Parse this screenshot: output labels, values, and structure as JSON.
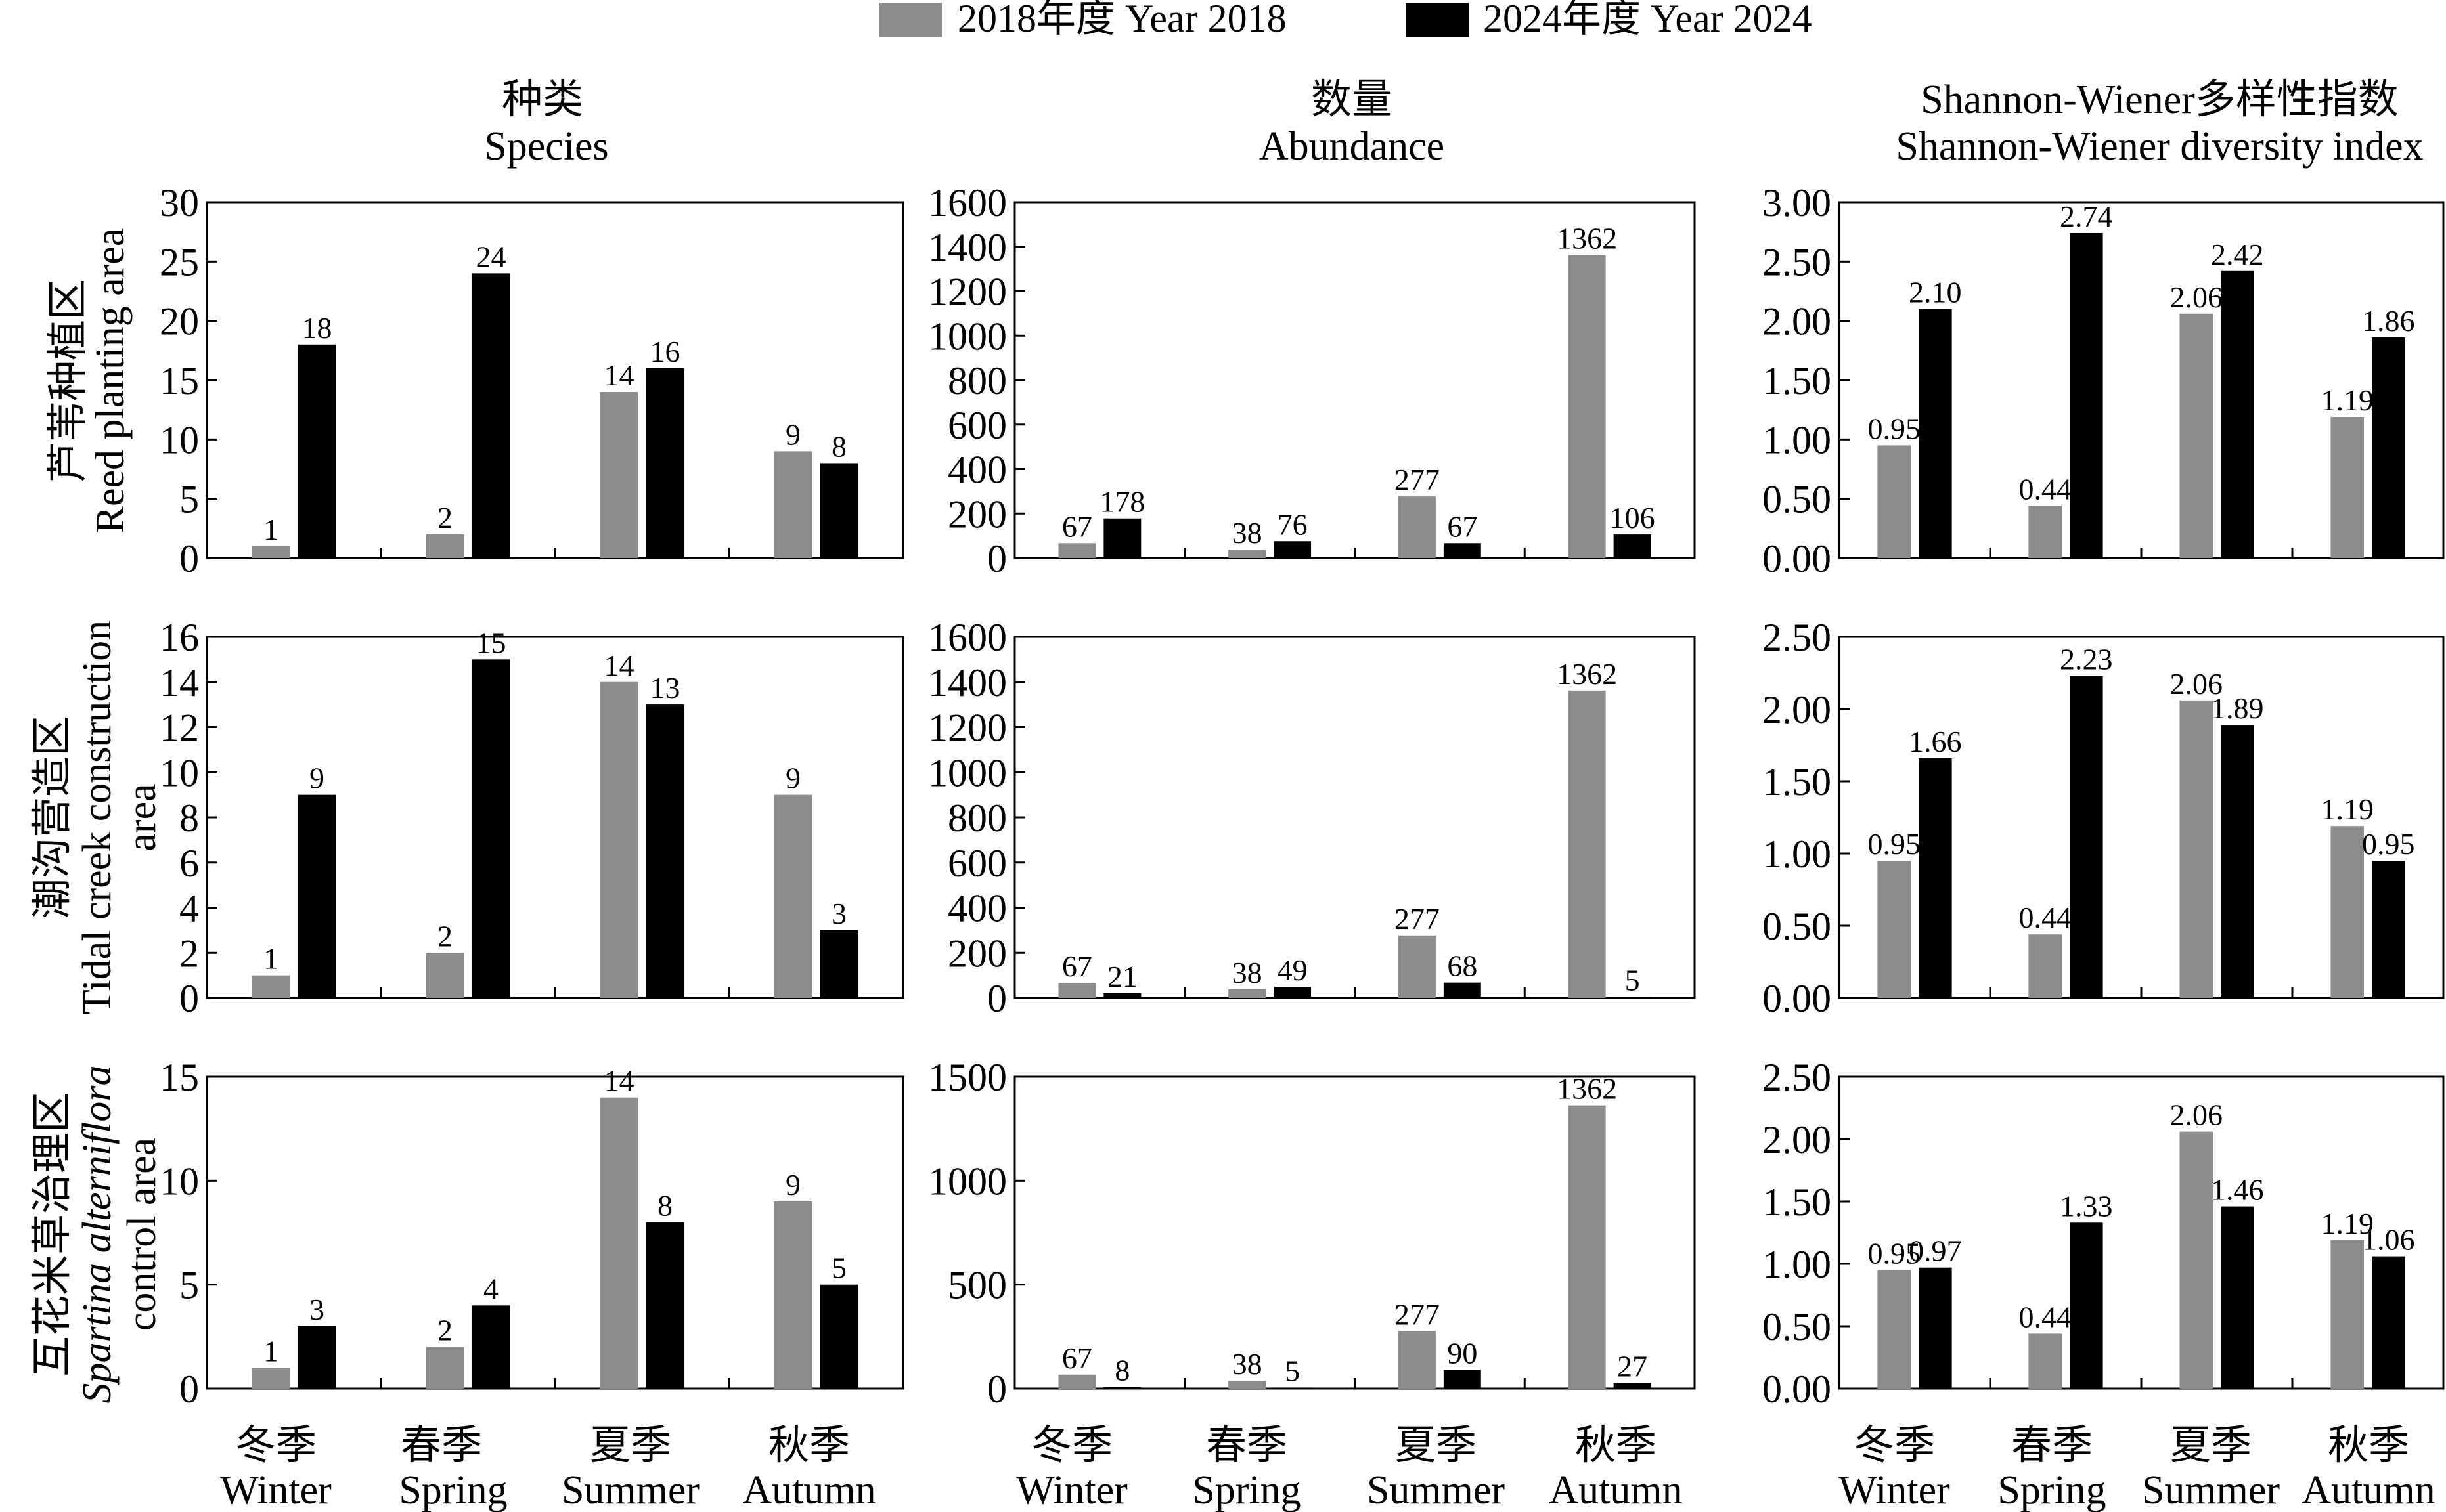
{
  "legend": {
    "items": [
      {
        "label": "2018年度 Year 2018",
        "color": "#8c8c8e"
      },
      {
        "label": "2024年度 Year 2024",
        "color": "#000000"
      }
    ]
  },
  "columns": [
    {
      "title_cn": "种类",
      "title_en": "Species"
    },
    {
      "title_cn": "数量",
      "title_en": "Abundance"
    },
    {
      "title_cn": "Shannon-Wiener多样性指数",
      "title_en": "Shannon-Wiener diversity index"
    }
  ],
  "rows": [
    {
      "lines": [
        "芦苇种植区",
        "Reed planting area"
      ]
    },
    {
      "lines": [
        "潮沟营造区",
        "Tidal creek construction",
        "area"
      ]
    },
    {
      "lines": [
        "互花米草治理区",
        "Spartina alterniflora",
        "control area"
      ]
    }
  ],
  "categories": [
    {
      "cn": "冬季",
      "en": "Winter"
    },
    {
      "cn": "春季",
      "en": "Spring"
    },
    {
      "cn": "夏季",
      "en": "Summer"
    },
    {
      "cn": "秋季",
      "en": "Autumn"
    }
  ],
  "chart_data": [
    {
      "type": "bar",
      "row": 0,
      "col": 0,
      "ylim": [
        0,
        30
      ],
      "yticks": [
        "0",
        "5",
        "10",
        "15",
        "20",
        "25",
        "30"
      ],
      "series": [
        {
          "name": "2018年度 Year 2018",
          "values": [
            1,
            2,
            14,
            9
          ],
          "labels": [
            "1",
            "2",
            "14",
            "9"
          ]
        },
        {
          "name": "2024年度 Year 2024",
          "values": [
            18,
            24,
            16,
            8
          ],
          "labels": [
            "18",
            "24",
            "16",
            "8"
          ]
        }
      ]
    },
    {
      "type": "bar",
      "row": 0,
      "col": 1,
      "ylim": [
        0,
        1600
      ],
      "yticks": [
        "0",
        "200",
        "400",
        "600",
        "800",
        "1000",
        "1200",
        "1400",
        "1600"
      ],
      "series": [
        {
          "name": "2018年度 Year 2018",
          "values": [
            67,
            38,
            277,
            1362
          ],
          "labels": [
            "67",
            "38",
            "277",
            "1362"
          ]
        },
        {
          "name": "2024年度 Year 2024",
          "values": [
            178,
            76,
            67,
            106
          ],
          "labels": [
            "178",
            "76",
            "67",
            "106"
          ]
        }
      ]
    },
    {
      "type": "bar",
      "row": 0,
      "col": 2,
      "ylim": [
        0,
        3
      ],
      "yticks": [
        "0.00",
        "0.50",
        "1.00",
        "1.50",
        "2.00",
        "2.50",
        "3.00"
      ],
      "series": [
        {
          "name": "2018年度 Year 2018",
          "values": [
            0.95,
            0.44,
            2.06,
            1.19
          ],
          "labels": [
            "0.95",
            "0.44",
            "2.06",
            "1.19"
          ]
        },
        {
          "name": "2024年度 Year 2024",
          "values": [
            2.1,
            2.74,
            2.42,
            1.86
          ],
          "labels": [
            "2.10",
            "2.74",
            "2.42",
            "1.86"
          ]
        }
      ]
    },
    {
      "type": "bar",
      "row": 1,
      "col": 0,
      "ylim": [
        0,
        16
      ],
      "yticks": [
        "0",
        "2",
        "4",
        "6",
        "8",
        "10",
        "12",
        "14",
        "16"
      ],
      "series": [
        {
          "name": "2018年度 Year 2018",
          "values": [
            1,
            2,
            14,
            9
          ],
          "labels": [
            "1",
            "2",
            "14",
            "9"
          ]
        },
        {
          "name": "2024年度 Year 2024",
          "values": [
            9,
            15,
            13,
            3
          ],
          "labels": [
            "9",
            "15",
            "13",
            "3"
          ]
        }
      ]
    },
    {
      "type": "bar",
      "row": 1,
      "col": 1,
      "ylim": [
        0,
        1600
      ],
      "yticks": [
        "0",
        "200",
        "400",
        "600",
        "800",
        "1000",
        "1200",
        "1400",
        "1600"
      ],
      "series": [
        {
          "name": "2018年度 Year 2018",
          "values": [
            67,
            38,
            277,
            1362
          ],
          "labels": [
            "67",
            "38",
            "277",
            "1362"
          ]
        },
        {
          "name": "2024年度 Year 2024",
          "values": [
            21,
            49,
            68,
            5
          ],
          "labels": [
            "21",
            "49",
            "68",
            "5"
          ]
        }
      ]
    },
    {
      "type": "bar",
      "row": 1,
      "col": 2,
      "ylim": [
        0,
        2.5
      ],
      "yticks": [
        "0.00",
        "0.50",
        "1.00",
        "1.50",
        "2.00",
        "2.50"
      ],
      "series": [
        {
          "name": "2018年度 Year 2018",
          "values": [
            0.95,
            0.44,
            2.06,
            1.19
          ],
          "labels": [
            "0.95",
            "0.44",
            "2.06",
            "1.19"
          ]
        },
        {
          "name": "2024年度 Year 2024",
          "values": [
            1.66,
            2.23,
            1.89,
            0.95
          ],
          "labels": [
            "1.66",
            "2.23",
            "1.89",
            "0.95"
          ]
        }
      ]
    },
    {
      "type": "bar",
      "row": 2,
      "col": 0,
      "ylim": [
        0,
        15
      ],
      "yticks": [
        "0",
        "5",
        "10",
        "15"
      ],
      "series": [
        {
          "name": "2018年度 Year 2018",
          "values": [
            1,
            2,
            14,
            9
          ],
          "labels": [
            "1",
            "2",
            "14",
            "9"
          ]
        },
        {
          "name": "2024年度 Year 2024",
          "values": [
            3,
            4,
            8,
            5
          ],
          "labels": [
            "3",
            "4",
            "8",
            "5"
          ]
        }
      ]
    },
    {
      "type": "bar",
      "row": 2,
      "col": 1,
      "ylim": [
        0,
        1500
      ],
      "yticks": [
        "0",
        "500",
        "1000",
        "1500"
      ],
      "series": [
        {
          "name": "2018年度 Year 2018",
          "values": [
            67,
            38,
            277,
            1362
          ],
          "labels": [
            "67",
            "38",
            "277",
            "1362"
          ]
        },
        {
          "name": "2024年度 Year 2024",
          "values": [
            8,
            5,
            90,
            27
          ],
          "labels": [
            "8",
            "5",
            "90",
            "27"
          ]
        }
      ]
    },
    {
      "type": "bar",
      "row": 2,
      "col": 2,
      "ylim": [
        0,
        2.5
      ],
      "yticks": [
        "0.00",
        "0.50",
        "1.00",
        "1.50",
        "2.00",
        "2.50"
      ],
      "series": [
        {
          "name": "2018年度 Year 2018",
          "values": [
            0.95,
            0.44,
            2.06,
            1.19
          ],
          "labels": [
            "0.95",
            "0.44",
            "2.06",
            "1.19"
          ]
        },
        {
          "name": "2024年度 Year 2024",
          "values": [
            0.97,
            1.33,
            1.46,
            1.06
          ],
          "labels": [
            "0.97",
            "1.33",
            "1.46",
            "1.06"
          ]
        }
      ]
    }
  ]
}
